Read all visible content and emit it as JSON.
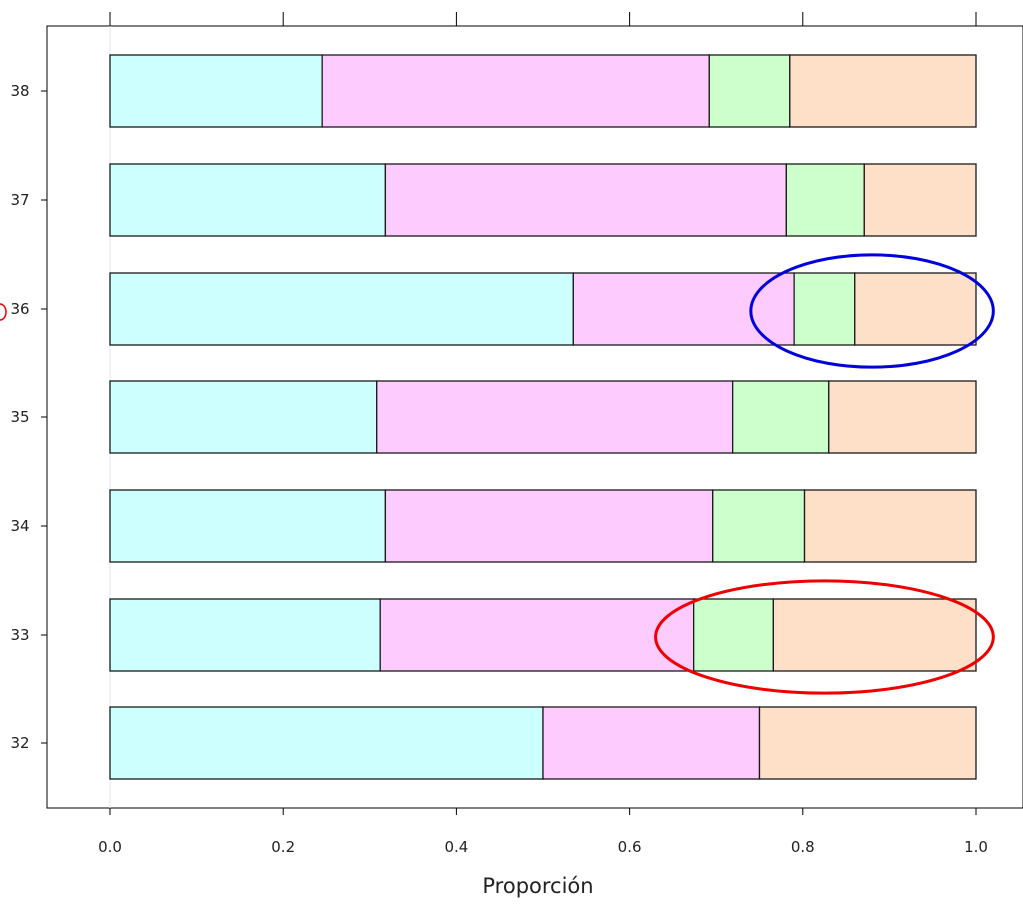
{
  "chart_data": {
    "type": "bar",
    "orientation": "horizontal",
    "stacked": true,
    "xlabel": "Proporción",
    "xlim": [
      -0.07,
      1.0
    ],
    "xticks": [
      "0.0",
      "0.2",
      "0.4",
      "0.6",
      "0.8",
      "1.0"
    ],
    "xtick_values": [
      0.0,
      0.2,
      0.4,
      0.6,
      0.8,
      1.0
    ],
    "categories": [
      "38",
      "37",
      "36",
      "35",
      "34",
      "33",
      "32"
    ],
    "series": [
      {
        "values": [
          0.245,
          0.318,
          0.535,
          0.308,
          0.318,
          0.312,
          0.5
        ]
      },
      {
        "values": [
          0.447,
          0.463,
          0.255,
          0.411,
          0.378,
          0.362,
          0.25
        ]
      },
      {
        "values": [
          0.093,
          0.09,
          0.07,
          0.111,
          0.106,
          0.092,
          0.0
        ]
      },
      {
        "values": [
          0.215,
          0.129,
          0.14,
          0.17,
          0.198,
          0.234,
          0.25
        ]
      }
    ],
    "series_colors": [
      "#ccfffe",
      "#fecbfe",
      "#cdffcc",
      "#fee0c8"
    ],
    "grid": false,
    "annotations": [
      {
        "shape": "ellipse",
        "color": "#0000dd",
        "row": "36",
        "x_range": [
          0.74,
          1.02
        ]
      },
      {
        "shape": "ellipse",
        "color": "#ee0000",
        "row": "33",
        "x_range": [
          0.63,
          1.02
        ]
      },
      {
        "shape": "ellipse-partial",
        "color": "#ee0000",
        "row": "36",
        "side": "left"
      }
    ]
  }
}
